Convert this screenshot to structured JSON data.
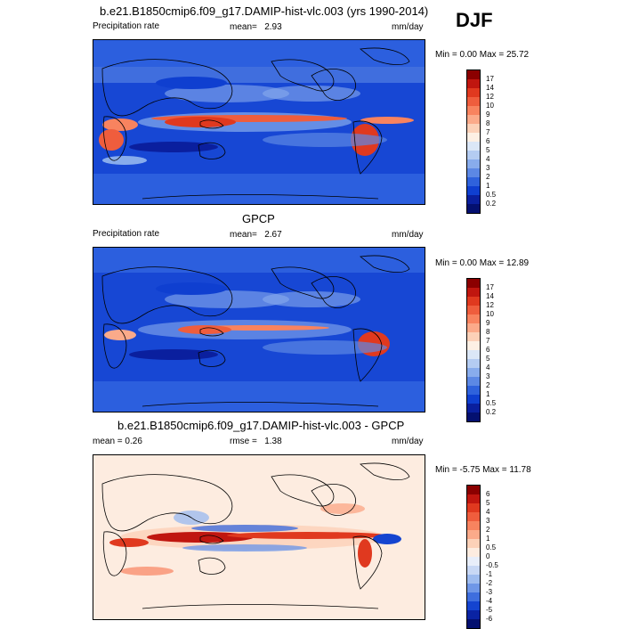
{
  "season": "DJF",
  "panels": [
    {
      "title": "b.e21.B1850cmip6.f09_g17.DAMIP-hist-vlc.003 (yrs 1990-2014)",
      "left_label": "Precipitation rate",
      "center_prefix": "mean=",
      "center_value": "2.93",
      "units": "mm/day",
      "range_text": "Min =   0.00 Max =  25.72",
      "colorbar_labels": [
        "17",
        "14",
        "12",
        "10",
        "9",
        "8",
        "7",
        "6",
        "5",
        "4",
        "3",
        "2",
        "1",
        "0.5",
        "0.2"
      ],
      "colorbar_colors": [
        "#8b0000",
        "#c0160f",
        "#e0391f",
        "#ef5d3d",
        "#f8835f",
        "#fbaa8a",
        "#fcd1b8",
        "#fdf0e4",
        "#dbe7f7",
        "#b4ccf2",
        "#88acec",
        "#5c88e4",
        "#2f62dc",
        "#0f3fd0",
        "#0a1f9e",
        "#041070"
      ]
    },
    {
      "title": "GPCP",
      "left_label": "Precipitation rate",
      "center_prefix": "mean=",
      "center_value": "2.67",
      "units": "mm/day",
      "range_text": "Min =   0.00 Max =  12.89",
      "colorbar_labels": [
        "17",
        "14",
        "12",
        "10",
        "9",
        "8",
        "7",
        "6",
        "5",
        "4",
        "3",
        "2",
        "1",
        "0.5",
        "0.2"
      ],
      "colorbar_colors": [
        "#8b0000",
        "#c0160f",
        "#e0391f",
        "#ef5d3d",
        "#f8835f",
        "#fbaa8a",
        "#fcd1b8",
        "#fdf0e4",
        "#dbe7f7",
        "#b4ccf2",
        "#88acec",
        "#5c88e4",
        "#2f62dc",
        "#0f3fd0",
        "#0a1f9e",
        "#041070"
      ]
    },
    {
      "title": "b.e21.B1850cmip6.f09_g17.DAMIP-hist-vlc.003 - GPCP",
      "left_label": "mean =   0.26",
      "center_prefix": "rmse =",
      "center_value": "1.38",
      "units": "mm/day",
      "range_text": "Min =  -5.75 Max =  11.78",
      "colorbar_labels": [
        "6",
        "5",
        "4",
        "3",
        "2",
        "1",
        "0.5",
        "0",
        "-0.5",
        "-1",
        "-2",
        "-3",
        "-4",
        "-5",
        "-6"
      ],
      "colorbar_colors": [
        "#8b0000",
        "#c0160f",
        "#e0391f",
        "#ef5d3d",
        "#f8835f",
        "#fbaa8a",
        "#fcd1b8",
        "#fdece0",
        "#e8eefa",
        "#c8d8f5",
        "#9ebcef",
        "#6f97e7",
        "#3e6ede",
        "#1444d0",
        "#0a23a3",
        "#041070"
      ]
    }
  ]
}
